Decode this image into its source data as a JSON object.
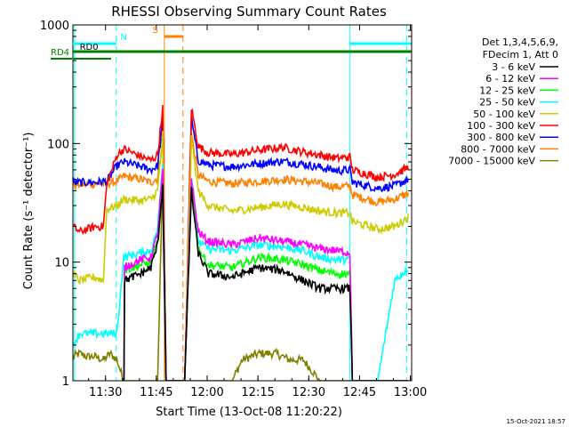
{
  "chart_data": {
    "type": "line",
    "title": "RHESSI Observing Summary Count Rates",
    "xlabel": "Start Time (13-Oct-08 11:20:22)",
    "ylabel": "Count Rate (s⁻¹ detector⁻¹)",
    "y_scale": "log",
    "x_unit": "minutes after 11:20:22",
    "xlim": [
      0,
      100
    ],
    "ylim": [
      1,
      1000
    ],
    "x_ticks": [
      {
        "t": 9.63,
        "label": "11:30"
      },
      {
        "t": 24.63,
        "label": "11:45"
      },
      {
        "t": 39.63,
        "label": "12:00"
      },
      {
        "t": 54.63,
        "label": "12:15"
      },
      {
        "t": 69.63,
        "label": "12:30"
      },
      {
        "t": 84.63,
        "label": "12:45"
      },
      {
        "t": 99.63,
        "label": "13:00"
      }
    ],
    "y_ticks": [
      {
        "v": 1,
        "label": "1"
      },
      {
        "v": 10,
        "label": "10"
      },
      {
        "v": 100,
        "label": "100"
      },
      {
        "v": 1000,
        "label": "1000"
      }
    ],
    "legend_header": [
      "Det 1,3,4,5,6,9,",
      "FDecim 1, Att 0"
    ],
    "series": [
      {
        "name": "3 - 6 keV",
        "color": "#000000",
        "points": [
          [
            9,
            0
          ],
          [
            13,
            0
          ],
          [
            15,
            7
          ],
          [
            20,
            8
          ],
          [
            23,
            9
          ],
          [
            25,
            14
          ],
          [
            26.5,
            45
          ],
          [
            27.5,
            1
          ],
          [
            33,
            1
          ],
          [
            35,
            40
          ],
          [
            37,
            12
          ],
          [
            40,
            8
          ],
          [
            47,
            7.5
          ],
          [
            55,
            9
          ],
          [
            62,
            8.5
          ],
          [
            68,
            7
          ],
          [
            73,
            6
          ],
          [
            78,
            6
          ],
          [
            81.8,
            6
          ],
          [
            82.5,
            1
          ],
          [
            90,
            1
          ],
          [
            95,
            1
          ],
          [
            99,
            1
          ]
        ]
      },
      {
        "name": "6 - 12 keV",
        "color": "#ff00ff",
        "points": [
          [
            9,
            0
          ],
          [
            13,
            0
          ],
          [
            15,
            9
          ],
          [
            20,
            10.5
          ],
          [
            23,
            11
          ],
          [
            25,
            17
          ],
          [
            26.5,
            60
          ],
          [
            27.5,
            1
          ],
          [
            33,
            1
          ],
          [
            35,
            50
          ],
          [
            37,
            18
          ],
          [
            40,
            15
          ],
          [
            47,
            14
          ],
          [
            55,
            16
          ],
          [
            62,
            15
          ],
          [
            68,
            14
          ],
          [
            73,
            13
          ],
          [
            78,
            12.5
          ],
          [
            81.8,
            12
          ],
          [
            82.5,
            1
          ],
          [
            90,
            1
          ],
          [
            95,
            1
          ],
          [
            99,
            1
          ]
        ]
      },
      {
        "name": "12 - 25 keV",
        "color": "#00ff00",
        "points": [
          [
            9,
            0
          ],
          [
            13,
            0
          ],
          [
            15,
            8.5
          ],
          [
            20,
            9.5
          ],
          [
            23,
            10
          ],
          [
            25,
            15
          ],
          [
            26.5,
            55
          ],
          [
            27.5,
            1
          ],
          [
            33,
            1
          ],
          [
            35,
            45
          ],
          [
            37,
            13
          ],
          [
            40,
            9.5
          ],
          [
            47,
            9
          ],
          [
            55,
            11
          ],
          [
            62,
            10.5
          ],
          [
            68,
            9.5
          ],
          [
            73,
            8.5
          ],
          [
            78,
            8
          ],
          [
            81.8,
            8
          ],
          [
            82.5,
            1
          ],
          [
            90,
            1
          ],
          [
            95,
            1
          ],
          [
            99,
            1
          ]
        ]
      },
      {
        "name": "25 - 50 keV",
        "color": "#00ffff",
        "points": [
          [
            0,
            2
          ],
          [
            2,
            2.5
          ],
          [
            4,
            2.5
          ],
          [
            6.5,
            2.5
          ],
          [
            9,
            2.5
          ],
          [
            11,
            2.5
          ],
          [
            13,
            2.5
          ],
          [
            15,
            11
          ],
          [
            20,
            12
          ],
          [
            23,
            12.5
          ],
          [
            25,
            19
          ],
          [
            26.5,
            70
          ],
          [
            27.5,
            1
          ],
          [
            33,
            1
          ],
          [
            35,
            55
          ],
          [
            37,
            15
          ],
          [
            40,
            13
          ],
          [
            47,
            12.5
          ],
          [
            55,
            14
          ],
          [
            62,
            13.5
          ],
          [
            68,
            12.5
          ],
          [
            73,
            11
          ],
          [
            78,
            10.5
          ],
          [
            81.8,
            10.5
          ],
          [
            82.5,
            1
          ],
          [
            90,
            1
          ],
          [
            95,
            7
          ],
          [
            99,
            9
          ]
        ]
      },
      {
        "name": "50 - 100 keV",
        "color": "#cccc00",
        "points": [
          [
            0,
            8
          ],
          [
            2,
            7
          ],
          [
            6.5,
            7.5
          ],
          [
            9,
            7
          ],
          [
            10,
            28
          ],
          [
            13,
            30
          ],
          [
            15,
            34
          ],
          [
            20,
            33
          ],
          [
            23,
            34
          ],
          [
            25,
            40
          ],
          [
            26.5,
            120
          ],
          [
            27.5,
            1
          ],
          [
            33,
            1
          ],
          [
            35,
            110
          ],
          [
            37,
            40
          ],
          [
            40,
            30
          ],
          [
            47,
            27
          ],
          [
            55,
            29
          ],
          [
            62,
            31
          ],
          [
            68,
            29
          ],
          [
            73,
            27
          ],
          [
            78,
            26
          ],
          [
            81.8,
            26
          ],
          [
            82.5,
            22
          ],
          [
            90,
            19
          ],
          [
            95,
            20
          ],
          [
            99,
            24
          ]
        ]
      },
      {
        "name": "100 - 300 keV",
        "color": "#ff0000",
        "points": [
          [
            0,
            20
          ],
          [
            2,
            18
          ],
          [
            6.5,
            20
          ],
          [
            9,
            20
          ],
          [
            10,
            45
          ],
          [
            13,
            80
          ],
          [
            15,
            90
          ],
          [
            20,
            78
          ],
          [
            23,
            72
          ],
          [
            25,
            80
          ],
          [
            26.5,
            200
          ],
          [
            27.5,
            1
          ],
          [
            33,
            1
          ],
          [
            35,
            200
          ],
          [
            37,
            95
          ],
          [
            40,
            84
          ],
          [
            47,
            81
          ],
          [
            55,
            88
          ],
          [
            62,
            93
          ],
          [
            68,
            85
          ],
          [
            73,
            80
          ],
          [
            78,
            75
          ],
          [
            81.8,
            77
          ],
          [
            82.5,
            60
          ],
          [
            90,
            52
          ],
          [
            95,
            55
          ],
          [
            99,
            63
          ]
        ]
      },
      {
        "name": "300 - 800 keV",
        "color": "#0000ff",
        "points": [
          [
            0,
            47
          ],
          [
            2,
            47
          ],
          [
            6.5,
            47
          ],
          [
            9,
            48
          ],
          [
            10,
            48
          ],
          [
            13,
            65
          ],
          [
            15,
            70
          ],
          [
            20,
            64
          ],
          [
            23,
            60
          ],
          [
            25,
            65
          ],
          [
            26.5,
            150
          ],
          [
            27.5,
            1
          ],
          [
            33,
            1
          ],
          [
            35,
            160
          ],
          [
            37,
            72
          ],
          [
            40,
            66
          ],
          [
            47,
            64
          ],
          [
            55,
            68
          ],
          [
            62,
            71
          ],
          [
            68,
            67
          ],
          [
            73,
            63
          ],
          [
            78,
            59
          ],
          [
            81.8,
            60
          ],
          [
            82.5,
            47
          ],
          [
            90,
            42
          ],
          [
            95,
            44
          ],
          [
            99,
            50
          ]
        ]
      },
      {
        "name": "800 - 7000 keV",
        "color": "#ff8000",
        "points": [
          [
            0,
            45
          ],
          [
            2,
            45
          ],
          [
            6.5,
            46
          ],
          [
            9,
            46
          ],
          [
            10,
            46
          ],
          [
            13,
            48
          ],
          [
            15,
            53
          ],
          [
            20,
            50
          ],
          [
            23,
            47
          ],
          [
            25,
            51
          ],
          [
            26.5,
            110
          ],
          [
            27.5,
            1
          ],
          [
            33,
            1
          ],
          [
            35,
            120
          ],
          [
            37,
            54
          ],
          [
            40,
            48
          ],
          [
            47,
            46
          ],
          [
            55,
            48
          ],
          [
            62,
            50
          ],
          [
            68,
            48
          ],
          [
            73,
            46
          ],
          [
            78,
            43
          ],
          [
            81.8,
            44
          ],
          [
            82.5,
            37
          ],
          [
            90,
            32
          ],
          [
            95,
            34
          ],
          [
            99,
            38
          ]
        ]
      },
      {
        "name": "7000 - 15000 keV",
        "color": "#808000",
        "points": [
          [
            0,
            1.6
          ],
          [
            2,
            1.7
          ],
          [
            4,
            1.6
          ],
          [
            6.5,
            1.6
          ],
          [
            9,
            1.5
          ],
          [
            11,
            1.7
          ],
          [
            13,
            1.5
          ],
          [
            15,
            1
          ],
          [
            20,
            1
          ],
          [
            23,
            1
          ],
          [
            25,
            1
          ],
          [
            26.5,
            60
          ],
          [
            27.5,
            1
          ],
          [
            33,
            1
          ],
          [
            35,
            1
          ],
          [
            37,
            1
          ],
          [
            40,
            1
          ],
          [
            47,
            1
          ],
          [
            50,
            1.5
          ],
          [
            55,
            1.7
          ],
          [
            60,
            1.7
          ],
          [
            64,
            1.5
          ],
          [
            68,
            1.5
          ],
          [
            73,
            1
          ],
          [
            78,
            1
          ],
          [
            81.8,
            1
          ],
          [
            82.5,
            1
          ],
          [
            90,
            1
          ],
          [
            95,
            1
          ],
          [
            99,
            1
          ]
        ]
      }
    ],
    "vlines": [
      {
        "t": 0.5,
        "color": "#00ffff",
        "style": "solid"
      },
      {
        "t": 12.8,
        "color": "#00ffff",
        "style": "dashed"
      },
      {
        "t": 27.0,
        "color": "#ff8000",
        "style": "solid"
      },
      {
        "t": 32.5,
        "color": "#ff8000",
        "style": "dashed"
      },
      {
        "t": 81.8,
        "color": "#00ffff",
        "style": "solid"
      },
      {
        "t": 98.5,
        "color": "#00ffff",
        "style": "dashed"
      }
    ],
    "flag_bars": [
      {
        "label": "N",
        "color": "#00ffff",
        "label_t": 14.0,
        "y_level": 1,
        "segments": [
          [
            0,
            12.8
          ],
          [
            81.8,
            99.8
          ]
        ]
      },
      {
        "label": "S",
        "color": "#ff8000",
        "label_t": 23.5,
        "y_level": 0,
        "segments": [
          [
            27.0,
            32.5
          ]
        ]
      },
      {
        "label": "RD0",
        "color": "#008000",
        "label_t": 2.0,
        "y_level": 2,
        "segments": [
          [
            0,
            99.8
          ]
        ]
      }
    ],
    "outside_label": {
      "text": "RD4",
      "color": "#008000"
    },
    "footer": "15-Oct-2021 18:57"
  }
}
